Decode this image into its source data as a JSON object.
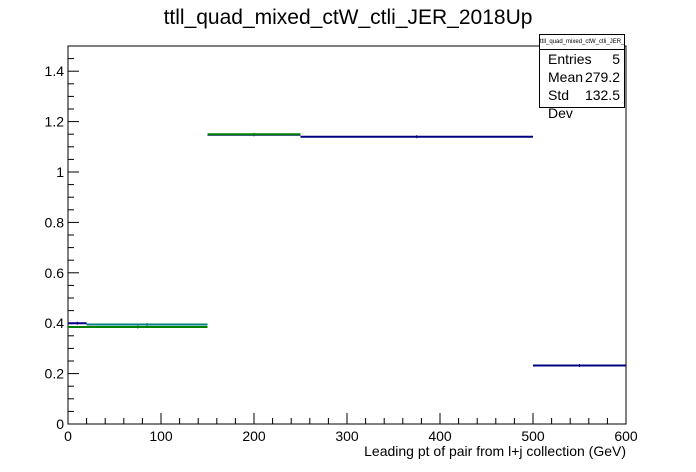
{
  "chart_data": {
    "type": "histogram",
    "title": "ttll_quad_mixed_ctW_ctli_JER_2018Up",
    "xlabel": "Leading pt of pair from l+j collection (GeV)",
    "ylabel": "",
    "xlim": [
      0,
      600
    ],
    "ylim": [
      0,
      1.5
    ],
    "x_ticks": [
      0,
      100,
      200,
      300,
      400,
      500,
      600
    ],
    "y_ticks": [
      0,
      0.2,
      0.4,
      0.6,
      0.8,
      1,
      1.2,
      1.4
    ],
    "grid": false,
    "series": [
      {
        "color": "#000080",
        "bins": [
          {
            "x0": 0,
            "x1": 20,
            "y": 0.4
          },
          {
            "x0": 20,
            "x1": 150,
            "y": 0.395
          },
          {
            "x0": 150,
            "x1": 250,
            "y": 1.148
          },
          {
            "x0": 250,
            "x1": 500,
            "y": 1.14
          },
          {
            "x0": 500,
            "x1": 600,
            "y": 0.232
          }
        ]
      },
      {
        "color": "#008000",
        "bins": [
          {
            "x0": 0,
            "x1": 150,
            "y": 0.385
          },
          {
            "x0": 150,
            "x1": 250,
            "y": 1.15
          }
        ]
      },
      {
        "color": "#008080",
        "bins": [
          {
            "x0": 20,
            "x1": 150,
            "y": 0.395
          }
        ]
      }
    ]
  },
  "stats_box": {
    "title": "ttll_quad_mixed_ctW_ctli_JER_2018Up",
    "entries_label": "Entries",
    "entries_value": "5",
    "mean_label": "Mean",
    "mean_value": "279.2",
    "stddev_label": "Std Dev",
    "stddev_value": "132.5"
  }
}
